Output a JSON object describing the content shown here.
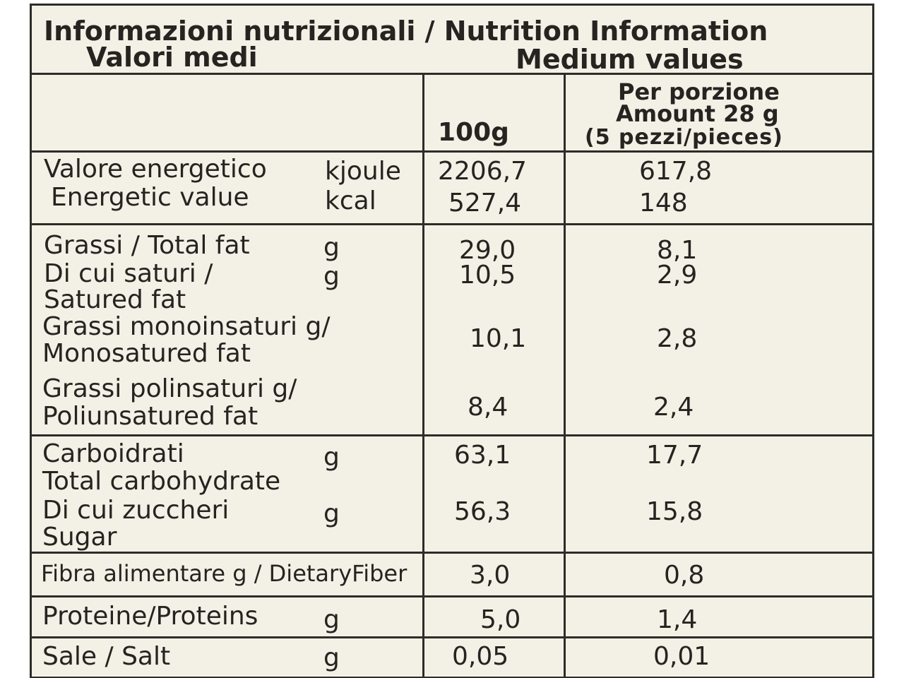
{
  "header": {
    "title": "Informazioni nutrizionali / Nutrition Information",
    "subtitle_it": "Valori medi",
    "subtitle_en": "Medium values"
  },
  "columns": {
    "per_100g": "100g",
    "per_portion": [
      "Per porzione",
      "Amount 28 g",
      "(5 pezzi/pieces)"
    ]
  },
  "rows": [
    {
      "label": [
        "Valore energetico"
      ],
      "unit": "kjoule",
      "per_100g": "2206,7",
      "per_portion": "617,8"
    },
    {
      "label": [
        "Energetic value"
      ],
      "unit": "kcal",
      "per_100g": "527,4",
      "per_portion": "148"
    },
    {
      "label": [
        "Grassi / Total fat"
      ],
      "unit": "g",
      "per_100g": "29,0",
      "per_portion": "8,1"
    },
    {
      "label": [
        "Di cui saturi /",
        "Satured fat"
      ],
      "unit": "g",
      "per_100g": "10,5",
      "per_portion": "2,9"
    },
    {
      "label": [
        "Grassi monoinsaturi g/",
        "Monosatured fat"
      ],
      "per_100g": "10,1",
      "per_portion": "2,8"
    },
    {
      "label": [
        "Grassi polinsaturi g/",
        "Poliunsatured fat"
      ],
      "per_100g": "8,4",
      "per_portion": "2,4"
    },
    {
      "label": [
        "Carboidrati",
        "Total carbohydrate"
      ],
      "unit": "g",
      "per_100g": "63,1",
      "per_portion": "17,7"
    },
    {
      "label": [
        "Di cui zuccheri",
        "Sugar"
      ],
      "unit": "g",
      "per_100g": "56,3",
      "per_portion": "15,8"
    },
    {
      "label": [
        "Fibra alimentare g / DietaryFiber"
      ],
      "per_100g": "3,0",
      "per_portion": "0,8"
    },
    {
      "label": [
        "Proteine/Proteins"
      ],
      "unit": "g",
      "per_100g": "5,0",
      "per_portion": "1,4"
    },
    {
      "label": [
        "Sale / Salt"
      ],
      "unit": "g",
      "per_100g": "0,05",
      "per_portion": "0,01"
    }
  ]
}
